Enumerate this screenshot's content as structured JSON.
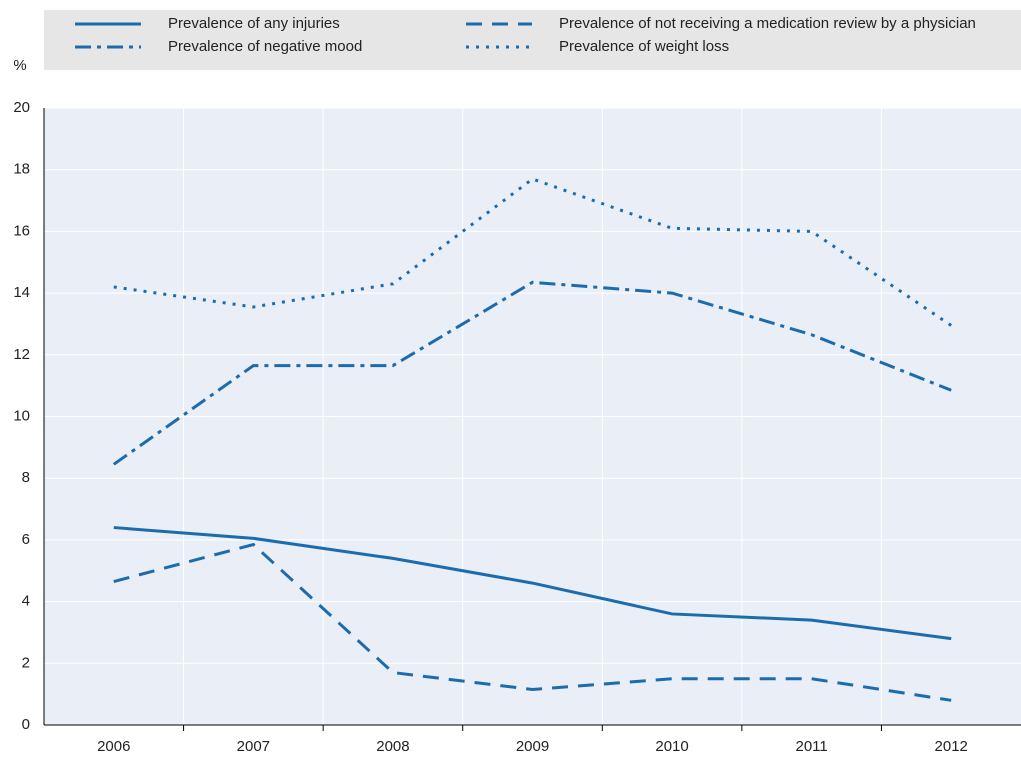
{
  "chart_data": {
    "type": "line",
    "y_label": "%",
    "categories": [
      "2006",
      "2007",
      "2008",
      "2009",
      "2010",
      "2011",
      "2012"
    ],
    "series": [
      {
        "name": "Prevalence of any injuries",
        "color": "#1c6cad",
        "dash": "solid",
        "values": [
          6.4,
          6.05,
          5.4,
          4.6,
          3.6,
          3.4,
          2.8
        ]
      },
      {
        "name": "Prevalence of not receiving a medication review by a physician",
        "color": "#1c6cad",
        "dash": "dashed",
        "values": [
          4.65,
          5.85,
          1.7,
          1.15,
          1.5,
          1.5,
          0.8
        ]
      },
      {
        "name": "Prevalence of negative mood",
        "color": "#1c6cad",
        "dash": "dashdot",
        "values": [
          8.45,
          11.65,
          11.65,
          14.35,
          14.0,
          12.65,
          10.85
        ]
      },
      {
        "name": "Prevalence of weight loss",
        "color": "#1c6cad",
        "dash": "dotted",
        "values": [
          14.2,
          13.55,
          14.3,
          17.7,
          16.1,
          16.0,
          12.95
        ]
      }
    ],
    "ylim": [
      0,
      20
    ],
    "yticks": [
      0,
      2,
      4,
      6,
      8,
      10,
      12,
      14,
      16,
      18,
      20
    ],
    "grid": true
  }
}
